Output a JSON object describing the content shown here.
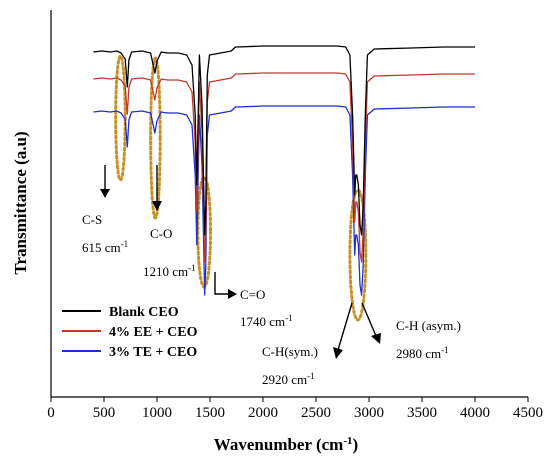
{
  "chart_data": {
    "type": "line",
    "title": "",
    "xlabel": "Wavenumber (cm",
    "xlabel_sup": "-1",
    "xlabel_close": ")",
    "ylabel": "Transmittance (a.u)",
    "xlim": [
      0,
      4500
    ],
    "x_ticks": [
      0,
      500,
      1000,
      1500,
      2000,
      2500,
      3000,
      3500,
      4000,
      4500
    ],
    "y_ticks_shown": false,
    "grid": false,
    "legend": "bottom-left",
    "series": [
      {
        "name": "Blank CEO",
        "color": "#000000",
        "offset": 0,
        "points": [
          [
            400,
            97
          ],
          [
            480,
            96
          ],
          [
            560,
            97
          ],
          [
            620,
            96
          ],
          [
            660,
            98
          ],
          [
            700,
            104
          ],
          [
            720,
            132
          ],
          [
            735,
            105
          ],
          [
            760,
            97
          ],
          [
            860,
            96
          ],
          [
            940,
            98
          ],
          [
            980,
            118
          ],
          [
            1000,
            106
          ],
          [
            1040,
            97
          ],
          [
            1100,
            98
          ],
          [
            1200,
            98
          ],
          [
            1280,
            100
          ],
          [
            1330,
            110
          ],
          [
            1360,
            160
          ],
          [
            1375,
            230
          ],
          [
            1385,
            180
          ],
          [
            1400,
            100
          ],
          [
            1425,
            150
          ],
          [
            1450,
            280
          ],
          [
            1460,
            250
          ],
          [
            1475,
            120
          ],
          [
            1495,
            100
          ],
          [
            1600,
            98
          ],
          [
            1700,
            96
          ],
          [
            1740,
            92
          ],
          [
            1760,
            92
          ],
          [
            2000,
            91
          ],
          [
            2400,
            91
          ],
          [
            2700,
            91
          ],
          [
            2780,
            92
          ],
          [
            2820,
            100
          ],
          [
            2845,
            160
          ],
          [
            2865,
            240
          ],
          [
            2875,
            220
          ],
          [
            2885,
            220
          ],
          [
            2900,
            230
          ],
          [
            2915,
            270
          ],
          [
            2930,
            280
          ],
          [
            2945,
            250
          ],
          [
            2965,
            160
          ],
          [
            2985,
            100
          ],
          [
            3050,
            94
          ],
          [
            3400,
            93
          ],
          [
            3700,
            92
          ],
          [
            4000,
            92
          ]
        ]
      },
      {
        "name": "4% EE + CEO",
        "color": "#C0392B",
        "offset": 27,
        "points": [
          [
            400,
            97
          ],
          [
            480,
            96
          ],
          [
            560,
            97
          ],
          [
            620,
            96
          ],
          [
            660,
            98
          ],
          [
            700,
            104
          ],
          [
            720,
            132
          ],
          [
            735,
            105
          ],
          [
            760,
            97
          ],
          [
            860,
            96
          ],
          [
            940,
            98
          ],
          [
            980,
            118
          ],
          [
            1000,
            106
          ],
          [
            1040,
            97
          ],
          [
            1100,
            98
          ],
          [
            1200,
            98
          ],
          [
            1280,
            100
          ],
          [
            1330,
            110
          ],
          [
            1360,
            160
          ],
          [
            1375,
            230
          ],
          [
            1385,
            180
          ],
          [
            1400,
            100
          ],
          [
            1425,
            150
          ],
          [
            1450,
            280
          ],
          [
            1460,
            250
          ],
          [
            1475,
            120
          ],
          [
            1495,
            100
          ],
          [
            1600,
            98
          ],
          [
            1700,
            96
          ],
          [
            1740,
            92
          ],
          [
            1760,
            92
          ],
          [
            2000,
            91
          ],
          [
            2400,
            91
          ],
          [
            2700,
            91
          ],
          [
            2780,
            92
          ],
          [
            2820,
            100
          ],
          [
            2845,
            160
          ],
          [
            2865,
            240
          ],
          [
            2875,
            220
          ],
          [
            2885,
            220
          ],
          [
            2900,
            230
          ],
          [
            2915,
            270
          ],
          [
            2930,
            280
          ],
          [
            2945,
            250
          ],
          [
            2965,
            160
          ],
          [
            2985,
            100
          ],
          [
            3050,
            94
          ],
          [
            3400,
            93
          ],
          [
            3700,
            92
          ],
          [
            4000,
            92
          ]
        ]
      },
      {
        "name": "3% TE + CEO",
        "color": "#1F2FD0",
        "offset": 60,
        "points": [
          [
            400,
            97
          ],
          [
            480,
            96
          ],
          [
            560,
            97
          ],
          [
            620,
            96
          ],
          [
            660,
            98
          ],
          [
            700,
            104
          ],
          [
            720,
            132
          ],
          [
            735,
            105
          ],
          [
            760,
            97
          ],
          [
            860,
            96
          ],
          [
            940,
            98
          ],
          [
            980,
            118
          ],
          [
            1000,
            106
          ],
          [
            1040,
            97
          ],
          [
            1100,
            98
          ],
          [
            1200,
            98
          ],
          [
            1280,
            100
          ],
          [
            1330,
            110
          ],
          [
            1360,
            160
          ],
          [
            1375,
            230
          ],
          [
            1385,
            180
          ],
          [
            1400,
            100
          ],
          [
            1425,
            150
          ],
          [
            1450,
            280
          ],
          [
            1460,
            250
          ],
          [
            1475,
            120
          ],
          [
            1495,
            100
          ],
          [
            1600,
            98
          ],
          [
            1700,
            96
          ],
          [
            1740,
            92
          ],
          [
            1760,
            92
          ],
          [
            2000,
            91
          ],
          [
            2400,
            91
          ],
          [
            2700,
            91
          ],
          [
            2780,
            92
          ],
          [
            2820,
            100
          ],
          [
            2845,
            160
          ],
          [
            2865,
            240
          ],
          [
            2875,
            220
          ],
          [
            2885,
            220
          ],
          [
            2900,
            230
          ],
          [
            2915,
            270
          ],
          [
            2930,
            280
          ],
          [
            2945,
            250
          ],
          [
            2965,
            160
          ],
          [
            2985,
            100
          ],
          [
            3050,
            94
          ],
          [
            3400,
            93
          ],
          [
            3700,
            92
          ],
          [
            4000,
            92
          ]
        ]
      }
    ],
    "annotations": [
      {
        "id": "cs",
        "text": "C-S",
        "wavenumber_text": "615 cm",
        "sup": "-1",
        "at": 615,
        "arrow": "down"
      },
      {
        "id": "co",
        "text": "C-O",
        "wavenumber_text": "1210 cm",
        "sup": "-1",
        "at": 1000,
        "arrow": "down"
      },
      {
        "id": "c-double-o",
        "text": "C=O",
        "wavenumber_text": "1740 cm",
        "sup": "-1",
        "at": 1480,
        "arrow": "right"
      },
      {
        "id": "ch-sym",
        "text": "C-H(sym.)",
        "wavenumber_text": "2920 cm",
        "sup": "-1",
        "at": 2860,
        "arrow": "down-left"
      },
      {
        "id": "ch-asym",
        "text": "C-H (asym.)",
        "wavenumber_text": "2980 cm",
        "sup": "-1",
        "at": 2950,
        "arrow": "down-right"
      }
    ],
    "highlight_regions": [
      {
        "x_center": 655,
        "half_width": 45,
        "color": "#C8912A"
      },
      {
        "x_center": 985,
        "half_width": 45,
        "color": "#C8912A"
      },
      {
        "x_center": 1445,
        "half_width": 60,
        "color": "#C8912A"
      },
      {
        "x_center": 2895,
        "half_width": 75,
        "color": "#C8912A"
      }
    ]
  }
}
